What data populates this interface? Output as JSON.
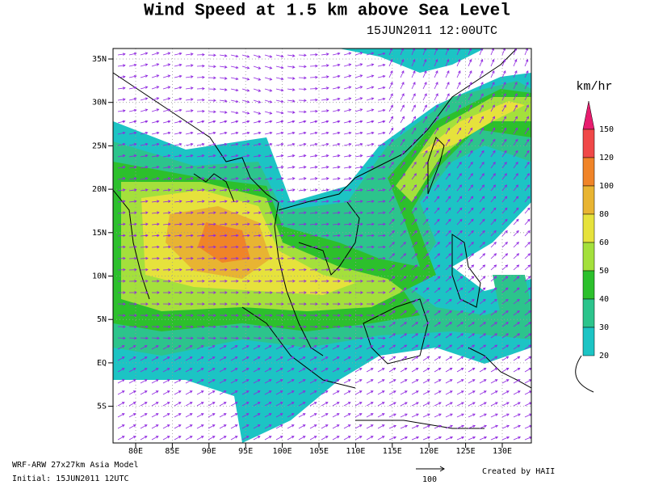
{
  "title": "Wind Speed at 1.5 km above Sea Level",
  "subtitle": "15JUN2011 12:00UTC",
  "lat_labels": [
    "35N",
    "30N",
    "25N",
    "20N",
    "15N",
    "10N",
    "5N",
    "EQ",
    "5S"
  ],
  "lon_labels": [
    "80E",
    "85E",
    "90E",
    "95E",
    "100E",
    "105E",
    "110E",
    "115E",
    "120E",
    "125E",
    "130E"
  ],
  "legend": {
    "unit": "km/hr",
    "levels": [
      150,
      120,
      100,
      80,
      60,
      50,
      40,
      30,
      20
    ],
    "colors": [
      "#e81c6e",
      "#f04848",
      "#f08428",
      "#e8b432",
      "#e6e23c",
      "#a4e03c",
      "#2cc02c",
      "#2cc48c",
      "#1cc4c4"
    ]
  },
  "footer": {
    "model": "WRF-ARW 27x27km Asia Model",
    "initial": "Initial: 15JUN2011 12UTC",
    "credit": "Created by HAII",
    "scale_label": "100"
  }
}
